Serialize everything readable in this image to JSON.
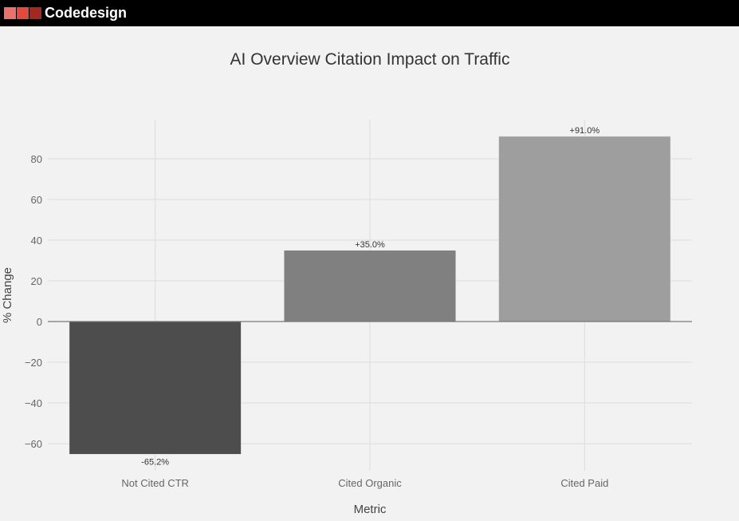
{
  "header": {
    "brand": "Codedesign",
    "logo_colors": [
      "#e8736d",
      "#e24a3f",
      "#a3281f"
    ]
  },
  "chart_data": {
    "type": "bar",
    "title": "AI Overview Citation Impact on Traffic",
    "xlabel": "Metric",
    "ylabel": "% Change",
    "categories": [
      "Not Cited CTR",
      "Cited Organic",
      "Cited Paid"
    ],
    "values": [
      -65.2,
      35.0,
      91.0
    ],
    "data_labels": [
      "-65.2%",
      "+35.0%",
      "+91.0%"
    ],
    "colors": [
      "#4d4d4d",
      "#808080",
      "#9e9e9e"
    ],
    "ylim": [
      -73.3,
      99.2
    ],
    "yticks": [
      -60,
      -40,
      -20,
      0,
      20,
      40,
      60,
      80
    ],
    "ytick_labels": [
      "−60",
      "−40",
      "−20",
      "0",
      "20",
      "40",
      "60",
      "80"
    ],
    "grid": true,
    "legend": "none"
  }
}
